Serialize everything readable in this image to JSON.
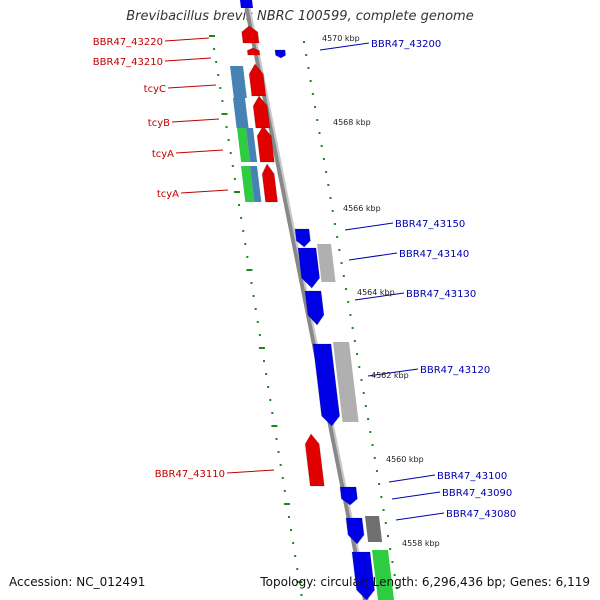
{
  "title": "Brevibacillus brevis NBRC 100599, complete genome",
  "footer": {
    "accession": "Accession: NC_012491",
    "summary": "Topology: circular; Length: 6,296,436 bp; Genes: 6,119"
  },
  "colors": {
    "forward_strand": "#e00000",
    "reverse_strand": "#0000e6",
    "forward_label": "#c00000",
    "reverse_label": "#0000b0",
    "backbone": "#888888",
    "tick": "#1a8a1a",
    "cog_blue": "#4682b4",
    "cog_green": "#2ecc40",
    "cog_grey": "#b0b0b0",
    "cog_dark": "#707070"
  },
  "scale_labels": [
    "4570 kbp",
    "4568 kbp",
    "4566 kbp",
    "4564 kbp",
    "4562 kbp",
    "4560 kbp",
    "4558 kbp"
  ],
  "forward_genes": [
    "BBR47_43220",
    "BBR47_43210",
    "tcyC",
    "tcyB",
    "tcyA",
    "tcyA",
    "BBR47_43110"
  ],
  "reverse_genes": [
    "BBR47_43200",
    "BBR47_43150",
    "BBR47_43140",
    "BBR47_43130",
    "BBR47_43120",
    "BBR47_43100",
    "BBR47_43090",
    "BBR47_43080"
  ]
}
